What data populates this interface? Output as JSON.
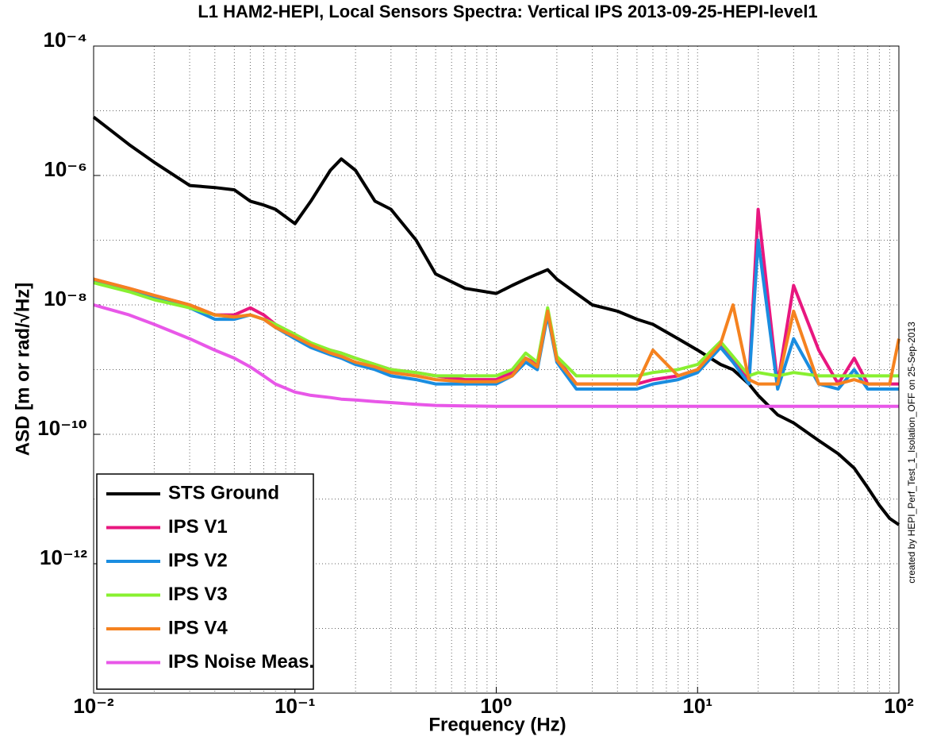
{
  "chart_data": {
    "type": "line",
    "title": "L1 HAM2-HEPI, Local Sensors Spectra:  Vertical  IPS 2013-09-25-HEPI-level1",
    "x_label": "Frequency (Hz)",
    "y_label": "ASD [m or rad/√Hz]",
    "annotation": "created by HEPI_Perf_Test_1_Isolation_OFF on 25-Sep-2013",
    "xscale": "log",
    "yscale": "log",
    "grid": true,
    "legend": "lower left",
    "xlim": [
      0.01,
      100
    ],
    "ylim": [
      1e-14,
      0.0001
    ],
    "xticks": [
      {
        "value": 0.01,
        "label": "10⁻²"
      },
      {
        "value": 0.1,
        "label": "10⁻¹"
      },
      {
        "value": 1,
        "label": "10⁰"
      },
      {
        "value": 10,
        "label": "10¹"
      },
      {
        "value": 100,
        "label": "10²"
      }
    ],
    "yticks": [
      {
        "value": 0.0001,
        "label": "10⁻⁴"
      },
      {
        "value": 1e-06,
        "label": "10⁻⁶"
      },
      {
        "value": 1e-08,
        "label": "10⁻⁸"
      },
      {
        "value": 1e-10,
        "label": "10⁻¹⁰"
      },
      {
        "value": 1e-12,
        "label": "10⁻¹²"
      },
      1e-14
    ],
    "xminorticks": [
      0.02,
      0.03,
      0.04,
      0.05,
      0.06,
      0.07,
      0.08,
      0.09,
      0.2,
      0.3,
      0.4,
      0.5,
      0.6,
      0.7,
      0.8,
      0.9,
      2,
      3,
      4,
      5,
      6,
      7,
      8,
      9,
      20,
      30,
      40,
      50,
      60,
      70,
      80,
      90
    ],
    "yminorticks": [
      1e-13,
      1e-11,
      1e-09,
      1e-07,
      1e-05
    ],
    "x": [
      0.01,
      0.015,
      0.02,
      0.03,
      0.04,
      0.05,
      0.06,
      0.07,
      0.08,
      0.1,
      0.12,
      0.15,
      0.17,
      0.2,
      0.25,
      0.3,
      0.4,
      0.5,
      0.7,
      1,
      1.2,
      1.4,
      1.6,
      1.8,
      2,
      2.5,
      3,
      4,
      5,
      6,
      8,
      10,
      13,
      15,
      18,
      20,
      25,
      30,
      40,
      50,
      60,
      70,
      80,
      90,
      100
    ],
    "series": [
      {
        "name": "STS Ground",
        "color": "#000000",
        "values": [
          8e-06,
          3e-06,
          1.6e-06,
          7e-07,
          6.5e-07,
          6e-07,
          4e-07,
          3.5e-07,
          3e-07,
          1.8e-07,
          4e-07,
          1.2e-06,
          1.8e-06,
          1.2e-06,
          4e-07,
          3e-07,
          1e-07,
          3e-08,
          1.8e-08,
          1.5e-08,
          2e-08,
          2.5e-08,
          3e-08,
          3.5e-08,
          2.5e-08,
          1.5e-08,
          1e-08,
          8e-09,
          6e-09,
          5e-09,
          3e-09,
          2e-09,
          1.2e-09,
          1e-09,
          6e-10,
          4e-10,
          2e-10,
          1.5e-10,
          8e-11,
          5e-11,
          3e-11,
          1.5e-11,
          8e-12,
          5e-12,
          4e-12
        ]
      },
      {
        "name": "IPS V1",
        "color": "#e8177f",
        "values": [
          2.5e-08,
          1.8e-08,
          1.4e-08,
          1e-08,
          7e-09,
          7e-09,
          9e-09,
          7e-09,
          5e-09,
          3.5e-09,
          2.5e-09,
          2e-09,
          1.8e-09,
          1.5e-09,
          1.2e-09,
          1e-09,
          9e-10,
          8e-10,
          7e-10,
          7e-10,
          9e-10,
          1.5e-09,
          1.2e-09,
          8e-09,
          1.5e-09,
          6e-10,
          6e-10,
          6e-10,
          6e-10,
          7e-10,
          8e-10,
          1e-09,
          2.5e-09,
          1.5e-09,
          7e-10,
          3e-07,
          6e-10,
          2e-08,
          2e-09,
          6e-10,
          1.5e-09,
          6e-10,
          6e-10,
          6e-10,
          6e-10
        ]
      },
      {
        "name": "IPS V2",
        "color": "#1a8de0",
        "values": [
          2.3e-08,
          1.7e-08,
          1.3e-08,
          9e-09,
          6e-09,
          6e-09,
          7e-09,
          6e-09,
          4.5e-09,
          3e-09,
          2.2e-09,
          1.7e-09,
          1.5e-09,
          1.2e-09,
          1e-09,
          8e-10,
          7e-10,
          6e-10,
          6e-10,
          6e-10,
          8e-10,
          1.3e-09,
          1e-09,
          7e-09,
          1.3e-09,
          5e-10,
          5e-10,
          5e-10,
          5e-10,
          6e-10,
          7e-10,
          9e-10,
          2.2e-09,
          1.3e-09,
          6e-10,
          1e-07,
          5e-10,
          3e-09,
          6e-10,
          5e-10,
          1e-09,
          5e-10,
          5e-10,
          5e-10,
          5e-10
        ]
      },
      {
        "name": "IPS V3",
        "color": "#88f030",
        "values": [
          2.2e-08,
          1.6e-08,
          1.2e-08,
          9e-09,
          7e-09,
          6.5e-09,
          7e-09,
          6e-09,
          5e-09,
          3.5e-09,
          2.6e-09,
          2e-09,
          1.8e-09,
          1.5e-09,
          1.2e-09,
          1e-09,
          9e-10,
          8e-10,
          8e-10,
          8e-10,
          1e-09,
          1.8e-09,
          1.3e-09,
          9e-09,
          1.6e-09,
          8e-10,
          8e-10,
          8e-10,
          8e-10,
          9e-10,
          1e-09,
          1.2e-09,
          2.7e-09,
          1.6e-09,
          8e-10,
          9e-10,
          8e-10,
          9e-10,
          8e-10,
          8e-10,
          8e-10,
          8e-10,
          8e-10,
          8e-10,
          8e-10
        ]
      },
      {
        "name": "IPS V4",
        "color": "#f5821f",
        "values": [
          2.5e-08,
          1.8e-08,
          1.4e-08,
          1e-08,
          7e-09,
          6.5e-09,
          7e-09,
          6e-09,
          4.5e-09,
          3.2e-09,
          2.4e-09,
          1.8e-09,
          1.6e-09,
          1.3e-09,
          1.1e-09,
          9e-10,
          8e-10,
          7e-10,
          6.5e-10,
          6.5e-10,
          8e-10,
          1.5e-09,
          1.1e-09,
          8e-09,
          1.4e-09,
          6e-10,
          6e-10,
          6e-10,
          6e-10,
          2e-09,
          8e-10,
          1e-09,
          2.5e-09,
          1e-08,
          7e-10,
          6e-10,
          6e-10,
          8e-09,
          6e-10,
          6e-10,
          7e-10,
          6e-10,
          6e-10,
          6e-10,
          3e-09
        ]
      },
      {
        "name": "IPS Noise Meas.",
        "color": "#e857e8",
        "values": [
          1e-08,
          7e-09,
          5e-09,
          3e-09,
          2e-09,
          1.5e-09,
          1.1e-09,
          8e-10,
          6e-10,
          4.5e-10,
          4e-10,
          3.7e-10,
          3.5e-10,
          3.4e-10,
          3.2e-10,
          3.1e-10,
          2.9e-10,
          2.8e-10,
          2.75e-10,
          2.7e-10,
          2.7e-10,
          2.7e-10,
          2.7e-10,
          2.7e-10,
          2.7e-10,
          2.7e-10,
          2.7e-10,
          2.7e-10,
          2.7e-10,
          2.7e-10,
          2.7e-10,
          2.7e-10,
          2.7e-10,
          2.7e-10,
          2.7e-10,
          2.7e-10,
          2.7e-10,
          2.7e-10,
          2.7e-10,
          2.7e-10,
          2.7e-10,
          2.7e-10,
          2.7e-10,
          2.7e-10,
          2.7e-10
        ]
      }
    ]
  }
}
